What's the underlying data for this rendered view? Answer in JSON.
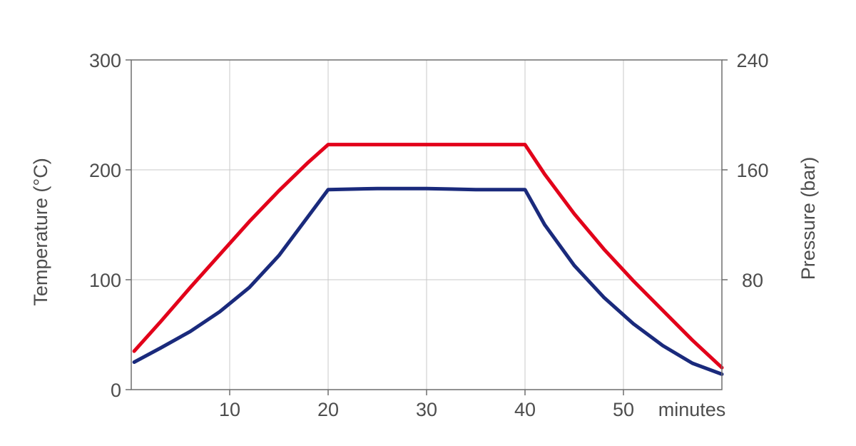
{
  "chart_data": {
    "type": "line",
    "title": "",
    "xlabel": "minutes",
    "ylabel": "Temperature (°C)",
    "y2label": "Pressure (bar)",
    "xlim": [
      0,
      60
    ],
    "ylim": [
      0,
      300
    ],
    "y2lim": [
      0,
      240
    ],
    "xticks": [
      10,
      20,
      30,
      40,
      50
    ],
    "yticks": [
      0,
      100,
      200,
      300
    ],
    "y2ticks": [
      80,
      160,
      240
    ],
    "grid": true,
    "series": [
      {
        "axis": "left",
        "color": "#e2001a",
        "x": [
          0.3,
          3,
          6,
          9,
          12,
          15,
          18,
          20,
          25,
          30,
          35,
          40,
          42,
          45,
          48,
          51,
          54,
          57,
          60
        ],
        "y": [
          35,
          62,
          93,
          123,
          153,
          181,
          207,
          223,
          223,
          223,
          223,
          223,
          196,
          160,
          128,
          99,
          72,
          45,
          20
        ]
      },
      {
        "axis": "left",
        "color": "#1a2a7c",
        "x": [
          0.3,
          3,
          6,
          9,
          12,
          15,
          18,
          20,
          25,
          30,
          35,
          40,
          42,
          45,
          48,
          51,
          54,
          57,
          60
        ],
        "y": [
          25,
          38,
          53,
          71,
          93,
          122,
          158,
          182,
          183,
          183,
          182,
          182,
          150,
          113,
          84,
          60,
          40,
          24,
          14
        ]
      }
    ]
  }
}
